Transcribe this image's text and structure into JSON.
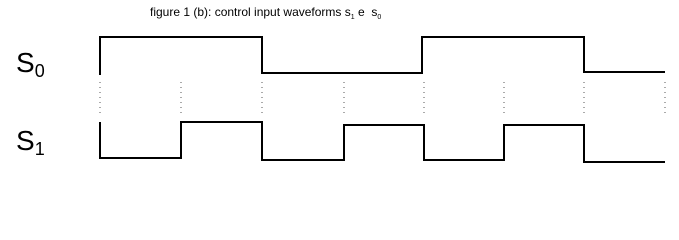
{
  "title": {
    "text": "figure 1 (b): control input waveforms s",
    "sub1": "1",
    "mid": " e  s",
    "sub2": "0"
  },
  "signals": [
    {
      "label": "S",
      "subscript": "0"
    },
    {
      "label": "S",
      "subscript": "1"
    }
  ]
}
